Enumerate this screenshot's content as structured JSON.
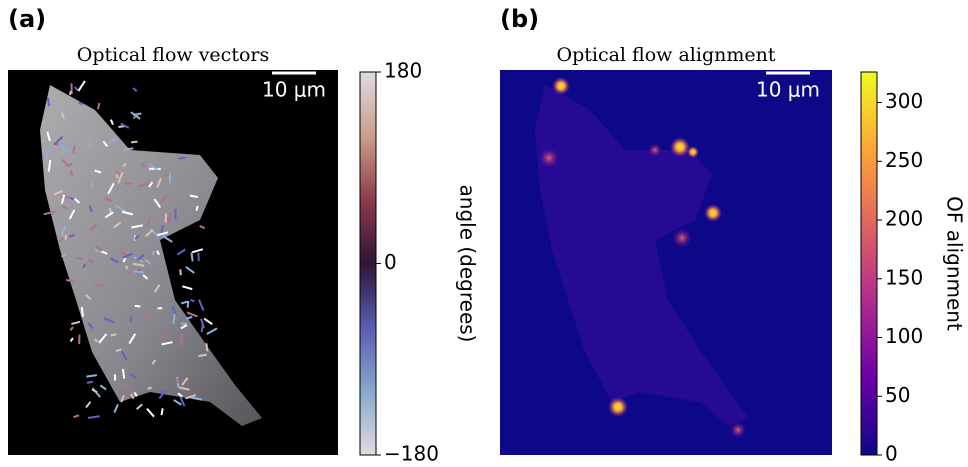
{
  "chart_data": [
    {
      "type": "image",
      "panel_label": "(a)",
      "title": "Optical flow vectors",
      "scale_bar": "10 μm",
      "colorbar_label": "angle (degrees)",
      "ylim": [
        -180,
        180
      ],
      "yticks": [
        {
          "value": -180,
          "label": "−180"
        },
        0,
        180
      ],
      "colormap": [
        "#e2d9e2",
        "#86a9cc",
        "#5b5cb2",
        "#2f1436",
        "#8e3b4c",
        "#c9a08a",
        "#e2d9e2"
      ]
    },
    {
      "type": "image",
      "panel_label": "(b)",
      "title": "Optical flow alignment",
      "scale_bar": "10 μm",
      "colorbar_label": "OF alignment",
      "ylim": [
        0,
        326
      ],
      "yticks": [
        0,
        50,
        100,
        150,
        200,
        250,
        300
      ],
      "colormap": [
        "#0d0887",
        "#6a00a8",
        "#b12a90",
        "#e16462",
        "#fca636",
        "#f0f921"
      ]
    }
  ]
}
